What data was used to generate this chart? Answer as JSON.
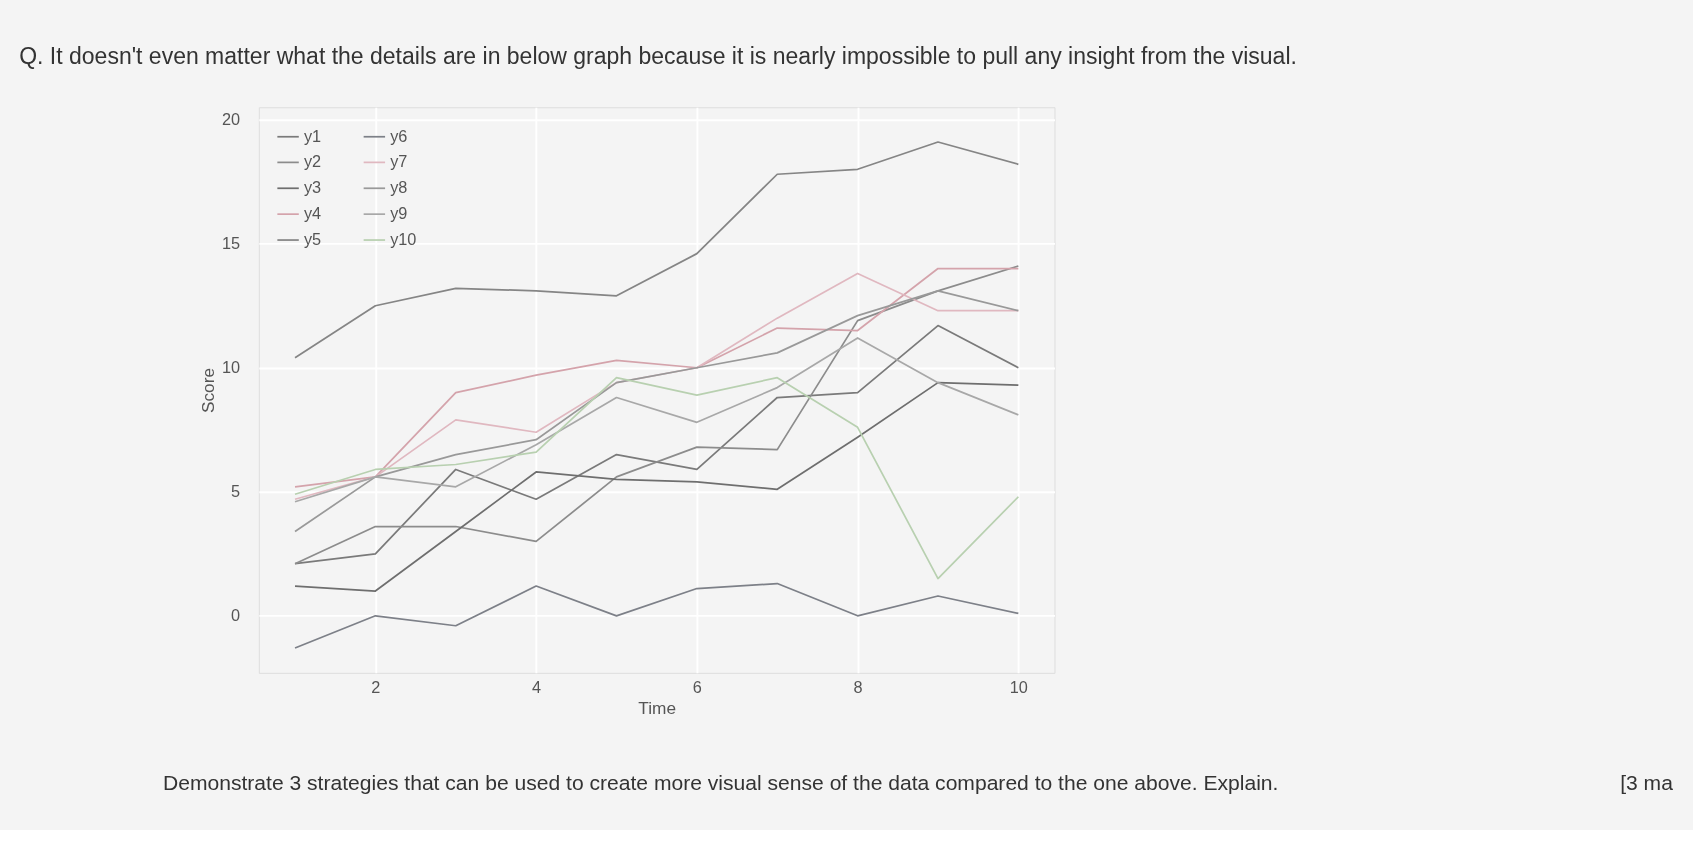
{
  "chart_data": {
    "type": "line",
    "title": "Q. It doesn't even matter what the details are in below graph because it is nearly impossible to pull any insight from the visual.",
    "xlabel": "Time",
    "ylabel": "Score",
    "x": [
      1,
      2,
      3,
      4,
      5,
      6,
      7,
      8,
      9,
      10
    ],
    "xlim": [
      0.55,
      10.45
    ],
    "xticks": [
      2,
      4,
      6,
      8,
      10
    ],
    "ylim": [
      -2.3,
      20.5
    ],
    "yticks": [
      0,
      5,
      10,
      15,
      20
    ],
    "grid": true,
    "legend": "top left",
    "line_style": "solid",
    "series": [
      {
        "name": "y1",
        "color": "#7a7a7a",
        "values": [
          2.1,
          2.5,
          5.9,
          4.7,
          6.5,
          5.9,
          8.8,
          9.0,
          11.7,
          10.0
        ]
      },
      {
        "name": "y2",
        "color": "#8c8c8c",
        "values": [
          2.1,
          3.6,
          3.6,
          3.0,
          5.6,
          6.8,
          6.7,
          11.9,
          13.1,
          14.1
        ]
      },
      {
        "name": "y3",
        "color": "#6e6e6e",
        "values": [
          1.2,
          1.0,
          3.4,
          5.8,
          5.5,
          5.4,
          5.1,
          7.2,
          9.4,
          9.3
        ]
      },
      {
        "name": "y4",
        "color": "#d4a3ab",
        "values": [
          5.2,
          5.6,
          9.0,
          9.7,
          10.3,
          10.0,
          11.6,
          11.5,
          14.0,
          14.0
        ]
      },
      {
        "name": "y5",
        "color": "#858585",
        "values": [
          10.4,
          12.5,
          13.2,
          13.1,
          12.9,
          14.6,
          17.8,
          18.0,
          19.1,
          18.2
        ]
      },
      {
        "name": "y6",
        "color": "#7d8088",
        "values": [
          -1.3,
          0,
          -0.4,
          1.2,
          0,
          1.1,
          1.3,
          0,
          0.8,
          0.1
        ]
      },
      {
        "name": "y7",
        "color": "#e0b8c0",
        "values": [
          4.7,
          5.6,
          7.9,
          7.4,
          9.4,
          10.0,
          12.0,
          13.8,
          12.3,
          12.3
        ]
      },
      {
        "name": "y8",
        "color": "#999999",
        "values": [
          3.4,
          5.6,
          6.5,
          7.1,
          9.4,
          10.0,
          10.6,
          12.1,
          13.1,
          12.3
        ]
      },
      {
        "name": "y9",
        "color": "#a8a8a8",
        "values": [
          4.6,
          5.6,
          5.2,
          6.9,
          8.8,
          7.8,
          9.2,
          11.2,
          9.4,
          8.1
        ]
      },
      {
        "name": "y10",
        "color": "#b8d0b0",
        "values": [
          4.9,
          5.9,
          6.1,
          6.6,
          9.6,
          8.9,
          9.6,
          7.6,
          1.5,
          4.8
        ]
      }
    ],
    "annotations": [
      "Demonstrate 3 strategies that can be used to create more visual sense of the data compared to the one above. Explain.",
      "[3 ma"
    ]
  }
}
